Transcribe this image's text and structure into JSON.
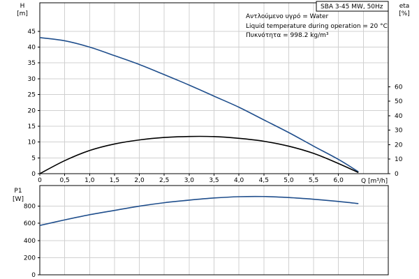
{
  "chart_data": [
    {
      "type": "line",
      "title": "SBA 3-45 MW, 50Hz",
      "info_lines": [
        "Αντλούμενο υγρό = Water",
        "Liquid temperature during operation = 20 °C",
        "Πυκνότητα = 998.2 kg/m³"
      ],
      "xlabel": "Q [m³/h]",
      "x_ticks": [
        "0",
        "0,5",
        "1,0",
        "1,5",
        "2,0",
        "2,5",
        "3,0",
        "3,5",
        "4,0",
        "4,5",
        "5,0",
        "5,5",
        "6,0"
      ],
      "xlim": [
        0,
        7
      ],
      "y_axis_left": {
        "label_top": "H",
        "label_unit": "[m]",
        "ticks": [
          "0",
          "5",
          "10",
          "15",
          "20",
          "25",
          "30",
          "35",
          "40",
          "45"
        ],
        "ylim": [
          0,
          54
        ]
      },
      "y_axis_right": {
        "label_top": "eta",
        "label_unit": "[%]",
        "ticks": [
          "0",
          "10",
          "20",
          "30",
          "40",
          "50",
          "60"
        ],
        "ylim": [
          0,
          118
        ]
      },
      "grid": true,
      "series": [
        {
          "axis": "left",
          "color": "#1f4e8c",
          "points": [
            [
              0,
              43
            ],
            [
              0.5,
              42
            ],
            [
              1.0,
              40
            ],
            [
              1.5,
              37.3
            ],
            [
              2.0,
              34.5
            ],
            [
              2.5,
              31.3
            ],
            [
              3.0,
              28
            ],
            [
              3.5,
              24.5
            ],
            [
              4.0,
              21
            ],
            [
              4.5,
              17
            ],
            [
              5.0,
              13
            ],
            [
              5.5,
              8.7
            ],
            [
              6.0,
              4.5
            ],
            [
              6.4,
              0.6
            ]
          ]
        },
        {
          "axis": "right",
          "color": "#000000",
          "points": [
            [
              0,
              0
            ],
            [
              0.5,
              9
            ],
            [
              1.0,
              16
            ],
            [
              1.5,
              20.5
            ],
            [
              2.0,
              23.3
            ],
            [
              2.5,
              25
            ],
            [
              3.0,
              25.7
            ],
            [
              3.5,
              25.6
            ],
            [
              4.0,
              24.4
            ],
            [
              4.5,
              22.4
            ],
            [
              5.0,
              19
            ],
            [
              5.5,
              14
            ],
            [
              6.0,
              7
            ],
            [
              6.4,
              0.8
            ]
          ]
        }
      ]
    },
    {
      "type": "line",
      "title": "",
      "xlabel": "",
      "xlim": [
        0,
        7
      ],
      "y_axis_left": {
        "label_top": "P1",
        "label_unit": "[W]",
        "ticks": [
          "0",
          "200",
          "400",
          "600",
          "800"
        ],
        "ylim": [
          0,
          1040
        ]
      },
      "grid": true,
      "series": [
        {
          "axis": "left",
          "color": "#1f4e8c",
          "points": [
            [
              0,
              575
            ],
            [
              0.5,
              640
            ],
            [
              1.0,
              700
            ],
            [
              1.5,
              750
            ],
            [
              2.0,
              800
            ],
            [
              2.5,
              840
            ],
            [
              3.0,
              870
            ],
            [
              3.5,
              895
            ],
            [
              4.0,
              910
            ],
            [
              4.5,
              912
            ],
            [
              5.0,
              900
            ],
            [
              5.5,
              880
            ],
            [
              6.0,
              855
            ],
            [
              6.4,
              830
            ]
          ]
        }
      ]
    }
  ]
}
